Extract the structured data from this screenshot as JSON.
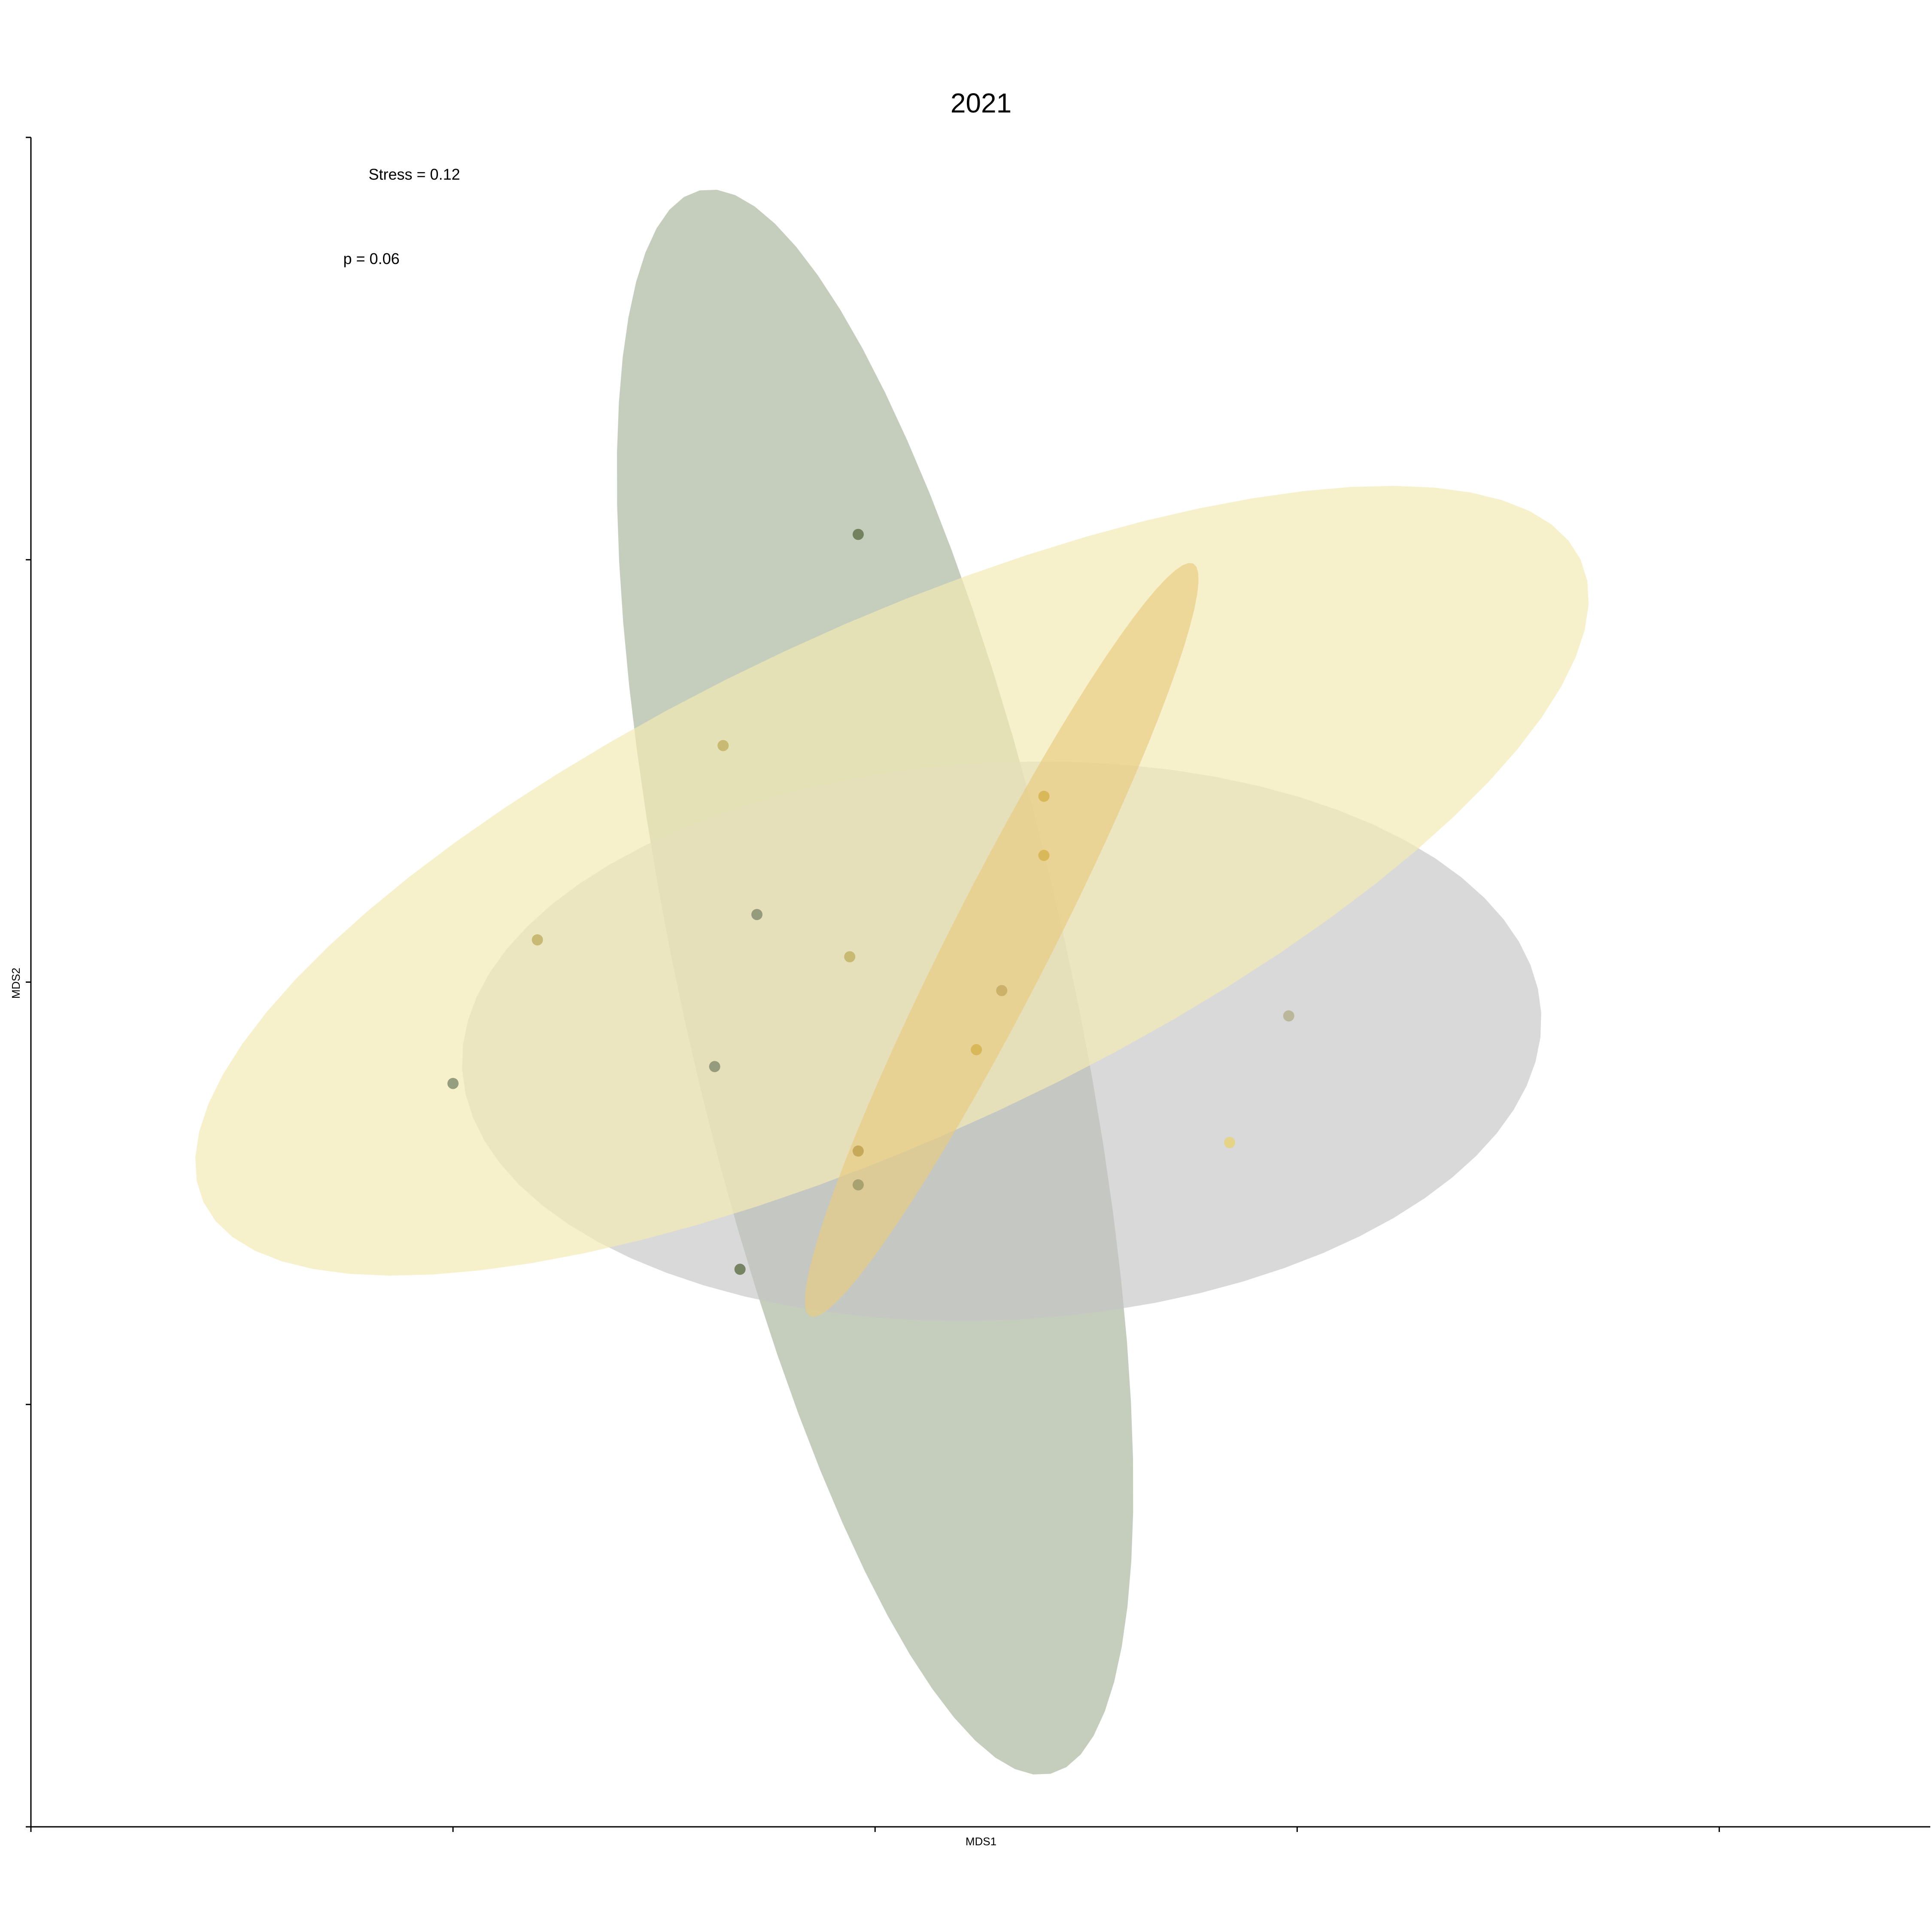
{
  "chart_data": {
    "type": "scatter",
    "title": "2021",
    "xlabel": "MDS1",
    "ylabel": "MDS2",
    "xlim": [
      -1.0,
      1.25
    ],
    "ylim": [
      -1.0,
      1.0
    ],
    "x_ticks": [
      -1.0,
      -0.5,
      0.0,
      0.5,
      1.0
    ],
    "y_ticks": [
      -1.0,
      -0.5,
      0.0,
      0.5,
      1.0
    ],
    "grid": false,
    "legend": "none",
    "annotations": [
      {
        "text": "Stress = 0.12",
        "x": -0.6,
        "y": 0.95
      },
      {
        "text": "p = 0.06",
        "x": -0.63,
        "y": 0.85
      }
    ],
    "series": [
      {
        "color": "#9aa58a",
        "ellipse": {
          "cx": 0.0,
          "cy": 0.0,
          "rx": 0.96,
          "ry": 0.23,
          "angle_deg": -77.5,
          "fill": "#9fab91",
          "opacity": 0.6
        },
        "points": [
          {
            "x": -0.02,
            "y": 0.53,
            "color": "#6b7a55"
          },
          {
            "x": -0.16,
            "y": -0.34,
            "color": "#6b7a55"
          },
          {
            "x": -0.14,
            "y": 0.08,
            "color": "#8c9578"
          },
          {
            "x": -0.19,
            "y": -0.1,
            "color": "#8c9578"
          },
          {
            "x": -0.5,
            "y": -0.12,
            "color": "#8c9578"
          }
        ]
      },
      {
        "color": "#c8c8c8",
        "ellipse": {
          "cx": 0.15,
          "cy": -0.07,
          "rx": 0.64,
          "ry": 0.33,
          "angle_deg": 3,
          "fill": "#c4c4c4",
          "opacity": 0.65
        },
        "points": [
          {
            "x": 0.49,
            "y": -0.04,
            "color": "#b6b394"
          },
          {
            "x": -0.02,
            "y": -0.24,
            "color": "#a29c6c"
          }
        ]
      },
      {
        "color": "#efe6ab",
        "ellipse": {
          "cx": 0.02,
          "cy": 0.12,
          "rx": 0.9,
          "ry": 0.3,
          "angle_deg": 25,
          "fill": "#f2e9b5",
          "opacity": 0.7
        },
        "points": [
          {
            "x": -0.18,
            "y": 0.28,
            "color": "#c4b56c"
          },
          {
            "x": -0.4,
            "y": 0.05,
            "color": "#c4b56c"
          },
          {
            "x": -0.03,
            "y": 0.03,
            "color": "#c4b56c"
          },
          {
            "x": 0.42,
            "y": -0.19,
            "color": "#e6d27e"
          }
        ]
      },
      {
        "color": "#e8c66b",
        "ellipse": {
          "cx": 0.15,
          "cy": 0.05,
          "rx": 0.5,
          "ry": 0.06,
          "angle_deg": 63,
          "fill": "#e8cb80",
          "opacity": 0.65
        },
        "points": [
          {
            "x": 0.2,
            "y": 0.22,
            "color": "#d6b552"
          },
          {
            "x": 0.2,
            "y": 0.15,
            "color": "#d6b552"
          },
          {
            "x": 0.15,
            "y": -0.01,
            "color": "#c9ad66"
          },
          {
            "x": 0.12,
            "y": -0.08,
            "color": "#d6b552"
          },
          {
            "x": -0.02,
            "y": -0.2,
            "color": "#c2a552"
          }
        ]
      }
    ]
  }
}
